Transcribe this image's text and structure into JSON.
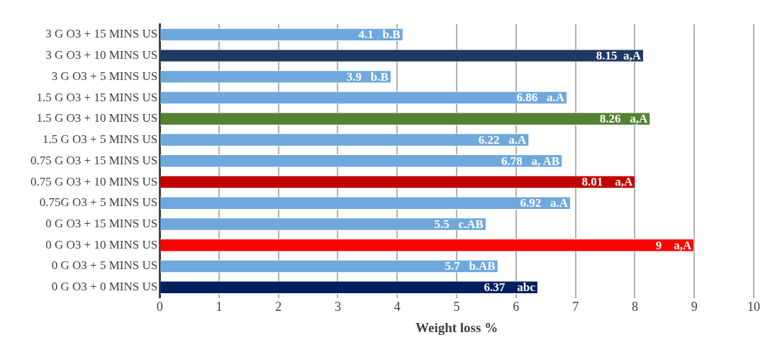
{
  "chart_data": {
    "type": "bar",
    "orientation": "horizontal",
    "xlabel": "Weight loss %",
    "categories": [
      "3 G O3 + 15 MINS US",
      "3 G O3 + 10 MINS US",
      "3 G O3 + 5 MINS US",
      "1.5 G O3 + 15 MINS US",
      "1.5 G O3 + 10 MINS US",
      "1.5 G O3 + 5 MINS US",
      "0.75 G O3 + 15 MINS US",
      "0.75 G O3 + 10 MINS US",
      "0.75G O3 + 5 MINS US",
      "0 G O3 + 15 MINS US",
      "0 G O3 + 10 MINS US",
      "0 G O3 + 5 MINS US",
      "0 G O3 + 0 MINS US"
    ],
    "values": [
      4.1,
      8.15,
      3.9,
      6.86,
      8.26,
      6.22,
      6.78,
      8.01,
      6.92,
      5.5,
      9,
      5.7,
      6.37
    ],
    "colors": [
      "#6fa8dc",
      "#203864",
      "#6fa8dc",
      "#6fa8dc",
      "#548235",
      "#6fa8dc",
      "#6fa8dc",
      "#c00000",
      "#6fa8dc",
      "#6fa8dc",
      "#ff0000",
      "#6fa8dc",
      "#002060"
    ],
    "value_labels": [
      "4.1   b.B",
      "8.15  a,A",
      "3.9   b.B",
      "6.86   a.A",
      "8.26   a,A",
      "6.22   a.A",
      "6.78   a, AB",
      "8.01    a,A",
      "6.92   a.A",
      "5.5   c.AB",
      "9    a,A",
      "5.7   b.AB",
      "6.37    abc"
    ],
    "xlim": [
      0,
      10
    ],
    "xticks": [
      0,
      1,
      2,
      3,
      4,
      5,
      6,
      7,
      8,
      9,
      10
    ],
    "grid": "x",
    "legend": false
  }
}
